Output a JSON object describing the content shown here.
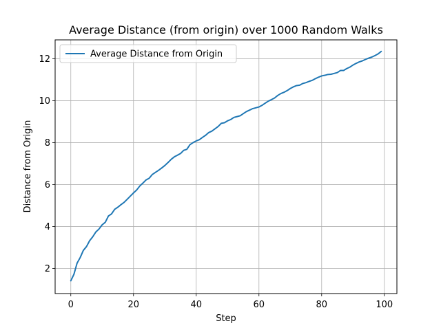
{
  "chart_data": {
    "type": "line",
    "title": "Average Distance (from origin) over 1000 Random Walks",
    "xlabel": "Step",
    "ylabel": "Distance from Origin",
    "xlim": [
      -5,
      104
    ],
    "ylim": [
      0.8,
      12.9
    ],
    "x_ticks": [
      0,
      20,
      40,
      60,
      80,
      100
    ],
    "y_ticks": [
      2,
      4,
      6,
      8,
      10,
      12
    ],
    "grid": true,
    "legend_position": "upper-left",
    "series": [
      {
        "name": "Average Distance from Origin",
        "color": "#1f77b4",
        "x": [
          0,
          1,
          2,
          3,
          4,
          5,
          6,
          7,
          8,
          9,
          10,
          11,
          12,
          13,
          14,
          15,
          16,
          17,
          18,
          19,
          20,
          21,
          22,
          23,
          24,
          25,
          26,
          27,
          28,
          29,
          30,
          31,
          32,
          33,
          34,
          35,
          36,
          37,
          38,
          39,
          40,
          41,
          42,
          43,
          44,
          45,
          46,
          47,
          48,
          49,
          50,
          51,
          52,
          53,
          54,
          55,
          56,
          57,
          58,
          59,
          60,
          61,
          62,
          63,
          64,
          65,
          66,
          67,
          68,
          69,
          70,
          71,
          72,
          73,
          74,
          75,
          76,
          77,
          78,
          79,
          80,
          81,
          82,
          83,
          84,
          85,
          86,
          87,
          88,
          89,
          90,
          91,
          92,
          93,
          94,
          95,
          96,
          97,
          98,
          99
        ],
        "y": [
          1.41,
          1.72,
          2.25,
          2.52,
          2.86,
          3.04,
          3.32,
          3.51,
          3.74,
          3.88,
          4.08,
          4.2,
          4.5,
          4.6,
          4.82,
          4.92,
          5.04,
          5.15,
          5.3,
          5.45,
          5.6,
          5.74,
          5.93,
          6.07,
          6.22,
          6.3,
          6.48,
          6.58,
          6.68,
          6.79,
          6.91,
          7.05,
          7.2,
          7.32,
          7.4,
          7.48,
          7.63,
          7.68,
          7.9,
          8.0,
          8.08,
          8.14,
          8.25,
          8.35,
          8.48,
          8.55,
          8.66,
          8.77,
          8.92,
          8.95,
          9.04,
          9.1,
          9.2,
          9.24,
          9.28,
          9.38,
          9.48,
          9.55,
          9.62,
          9.66,
          9.7,
          9.78,
          9.88,
          9.98,
          10.05,
          10.13,
          10.25,
          10.34,
          10.4,
          10.48,
          10.58,
          10.66,
          10.72,
          10.74,
          10.82,
          10.86,
          10.92,
          10.97,
          11.05,
          11.12,
          11.18,
          11.21,
          11.25,
          11.26,
          11.3,
          11.34,
          11.44,
          11.44,
          11.53,
          11.6,
          11.7,
          11.78,
          11.85,
          11.9,
          11.97,
          12.03,
          12.08,
          12.15,
          12.23,
          12.35
        ]
      }
    ]
  }
}
